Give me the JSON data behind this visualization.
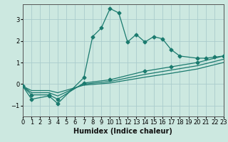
{
  "title": "",
  "xlabel": "Humidex (Indice chaleur)",
  "bg_color": "#cce8e0",
  "line_color": "#1a7a6e",
  "grid_color": "#aacccc",
  "xlim": [
    0,
    23
  ],
  "ylim": [
    -1.5,
    3.7
  ],
  "xticks": [
    0,
    1,
    2,
    3,
    4,
    5,
    6,
    7,
    8,
    9,
    10,
    11,
    12,
    13,
    14,
    15,
    16,
    17,
    18,
    19,
    20,
    21,
    22,
    23
  ],
  "yticks": [
    -1,
    0,
    1,
    2,
    3
  ],
  "series1_x": [
    0,
    1,
    3,
    4,
    7,
    8,
    9,
    10,
    11,
    12,
    13,
    14,
    15,
    16,
    17,
    18,
    20,
    21,
    22,
    23
  ],
  "series1_y": [
    -0.1,
    -0.7,
    -0.55,
    -0.9,
    0.3,
    2.2,
    2.6,
    3.5,
    3.3,
    1.95,
    2.3,
    1.95,
    2.2,
    2.1,
    1.6,
    1.3,
    1.2,
    1.2,
    1.25,
    1.3
  ],
  "series2_x": [
    0,
    1,
    3,
    4,
    7,
    10,
    14,
    17,
    20,
    23
  ],
  "series2_y": [
    -0.1,
    -0.5,
    -0.5,
    -0.7,
    0.05,
    0.2,
    0.6,
    0.8,
    1.0,
    1.3
  ],
  "series3_x": [
    0,
    1,
    3,
    4,
    7,
    10,
    14,
    17,
    20,
    23
  ],
  "series3_y": [
    -0.1,
    -0.4,
    -0.4,
    -0.55,
    0.0,
    0.12,
    0.45,
    0.65,
    0.85,
    1.15
  ],
  "series4_x": [
    0,
    1,
    3,
    4,
    7,
    10,
    14,
    17,
    20,
    23
  ],
  "series4_y": [
    -0.1,
    -0.3,
    -0.3,
    -0.4,
    -0.05,
    0.05,
    0.32,
    0.5,
    0.7,
    1.0
  ],
  "tick_fontsize": 6,
  "xlabel_fontsize": 7,
  "marker_size": 2.5,
  "line_width": 0.9
}
